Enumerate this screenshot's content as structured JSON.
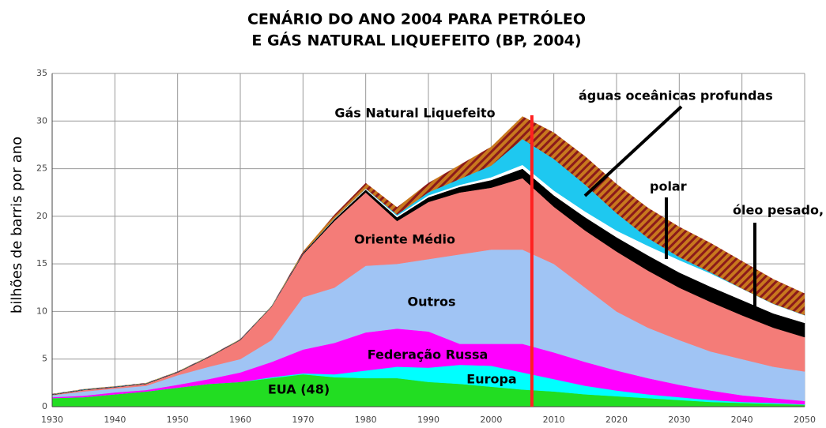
{
  "chart_data": {
    "type": "stacked_area",
    "title": [
      "CENÁRIO DO ANO 2004 PARA PETRÓLEO",
      "E GÁS NATURAL LIQUEFEITO (BP, 2004)"
    ],
    "ylabel": "bilhões de barris por ano",
    "x": [
      1930,
      1935,
      1940,
      1945,
      1950,
      1955,
      1960,
      1965,
      1970,
      1975,
      1980,
      1985,
      1990,
      1995,
      2000,
      2005,
      2010,
      2015,
      2020,
      2025,
      2030,
      2035,
      2040,
      2045,
      2050
    ],
    "series": [
      {
        "name": "EUA (48)",
        "color": "#22dd22",
        "values": [
          0.9,
          1.0,
          1.3,
          1.6,
          2.0,
          2.4,
          2.6,
          3.0,
          3.4,
          3.1,
          3.0,
          3.0,
          2.6,
          2.4,
          2.1,
          1.8,
          1.6,
          1.3,
          1.1,
          0.9,
          0.7,
          0.5,
          0.4,
          0.3,
          0.2
        ]
      },
      {
        "name": "Europa",
        "color": "#00ffff",
        "values": [
          0,
          0,
          0,
          0,
          0,
          0,
          0,
          0.1,
          0.1,
          0.3,
          0.8,
          1.2,
          1.5,
          2.0,
          2.2,
          1.8,
          1.3,
          0.9,
          0.6,
          0.4,
          0.3,
          0.2,
          0.1,
          0.1,
          0.05
        ]
      },
      {
        "name": "Federação Russa",
        "color": "#ff00ff",
        "values": [
          0.1,
          0.15,
          0.2,
          0.15,
          0.3,
          0.5,
          1.0,
          1.6,
          2.5,
          3.3,
          4.0,
          4.0,
          3.8,
          2.2,
          2.3,
          3.0,
          2.8,
          2.5,
          2.1,
          1.7,
          1.3,
          1.0,
          0.7,
          0.5,
          0.35
        ]
      },
      {
        "name": "Outros",
        "color": "#a0c4f4",
        "values": [
          0.2,
          0.45,
          0.4,
          0.45,
          1.0,
          1.3,
          1.4,
          2.3,
          5.5,
          5.8,
          7.0,
          6.8,
          7.6,
          9.4,
          9.9,
          9.9,
          9.3,
          7.8,
          6.2,
          5.3,
          4.7,
          4.1,
          3.8,
          3.3,
          3.1
        ]
      },
      {
        "name": "Oriente Médio",
        "color": "#f47c78",
        "values": [
          0.05,
          0.15,
          0.15,
          0.2,
          0.3,
          1.0,
          2.0,
          3.5,
          4.5,
          7.0,
          7.7,
          4.5,
          6.0,
          6.5,
          6.5,
          7.5,
          6.0,
          6.0,
          6.3,
          6.0,
          5.5,
          5.2,
          4.6,
          4.1,
          3.6
        ]
      },
      {
        "name": "óleo pesado, etc.",
        "color": "#000000",
        "values": [
          0.05,
          0.05,
          0.05,
          0.05,
          0.05,
          0.05,
          0.05,
          0.05,
          0.1,
          0.2,
          0.3,
          0.4,
          0.5,
          0.6,
          0.8,
          1.0,
          1.2,
          1.4,
          1.5,
          1.6,
          1.6,
          1.6,
          1.6,
          1.5,
          1.5
        ]
      },
      {
        "name": "polar",
        "color": "#ffffff",
        "values": [
          0,
          0,
          0,
          0,
          0,
          0,
          0,
          0,
          0,
          0.05,
          0.1,
          0.15,
          0.2,
          0.2,
          0.3,
          0.4,
          0.5,
          0.6,
          0.7,
          1.0,
          1.3,
          1.4,
          1.2,
          1.0,
          0.8
        ]
      },
      {
        "name": "águas oceânicas profundas",
        "color": "#1ec8f0",
        "values": [
          0,
          0,
          0,
          0,
          0,
          0,
          0,
          0,
          0,
          0,
          0,
          0.1,
          0.3,
          0.6,
          1.2,
          2.7,
          3.3,
          2.8,
          1.8,
          0.8,
          0.3,
          0.1,
          0,
          0,
          0
        ]
      },
      {
        "name": "Gás Natural Liquefeito",
        "color": "#c8781e",
        "hatch": "#8b1a1a",
        "values": [
          0.05,
          0.05,
          0.05,
          0.05,
          0.05,
          0.05,
          0.05,
          0.05,
          0.2,
          0.4,
          0.6,
          0.8,
          1.0,
          1.5,
          2.0,
          2.4,
          2.8,
          3.0,
          3.1,
          3.2,
          3.2,
          3.1,
          2.9,
          2.6,
          2.3
        ]
      }
    ],
    "vline": {
      "x": 2006.5,
      "color": "#ff2020"
    },
    "xlim": [
      1930,
      2050
    ],
    "xticks": [
      1930,
      1940,
      1950,
      1960,
      1970,
      1980,
      1990,
      2000,
      2010,
      2020,
      2030,
      2040,
      2050
    ],
    "ylim": [
      0,
      35
    ],
    "yticks": [
      0,
      5,
      10,
      15,
      20,
      25,
      30,
      35
    ],
    "grid": true
  }
}
